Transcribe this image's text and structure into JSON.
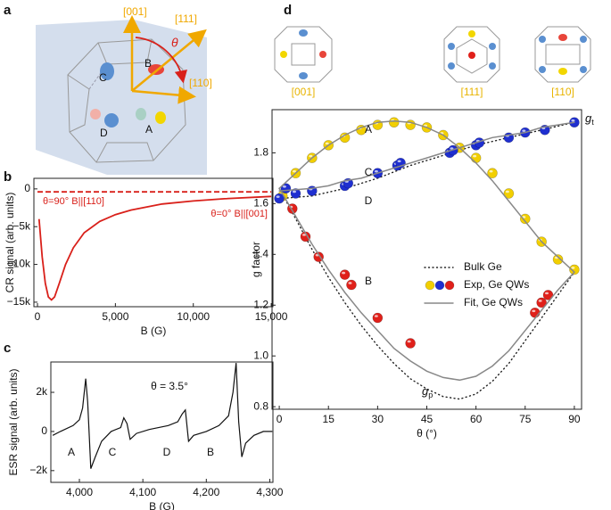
{
  "panel_labels": [
    "a",
    "b",
    "c",
    "d"
  ],
  "diagram_a": {
    "axes": [
      "[001]",
      "[111]",
      "[110]"
    ],
    "angle": "θ",
    "labels": [
      "B",
      "C",
      "D",
      "A"
    ]
  },
  "insets_d": [
    "[001]",
    "[111]",
    "[110]"
  ],
  "chart_data": [
    {
      "type": "line",
      "xlabel": "B (G)",
      "ylabel": "CR signal (arb. units)",
      "xlim": [
        -230,
        15110
      ],
      "ylim": [
        -15600,
        1400
      ],
      "xticks": [
        0,
        {
          "value": 5000,
          "label": "5,000"
        },
        {
          "value": 10000,
          "label": "10,000"
        },
        {
          "value": 15000,
          "label": "15,000"
        }
      ],
      "yticks": [
        0,
        {
          "value": -5000,
          "label": "−5k"
        },
        {
          "value": -10000,
          "label": "−10k"
        },
        {
          "value": -15000,
          "label": "−15k"
        }
      ],
      "annotations": [
        "θ=90° B||[110]",
        "θ=0° B||[001]"
      ],
      "series": [
        {
          "color": "#d9201a",
          "dash": true,
          "x": [
            0,
            15000
          ],
          "values": [
            -400,
            -400
          ]
        },
        {
          "color": "#d9201a",
          "dash": false,
          "x": [
            100,
            300,
            500,
            700,
            900,
            1100,
            1400,
            1800,
            2300,
            3000,
            4000,
            5000,
            6000,
            8000,
            10000,
            12000,
            15000
          ],
          "values": [
            -4000,
            -9000,
            -12500,
            -14300,
            -14700,
            -14300,
            -12500,
            -10000,
            -7800,
            -5800,
            -4300,
            -3400,
            -2800,
            -2000,
            -1600,
            -1300,
            -1000
          ]
        }
      ]
    },
    {
      "type": "line",
      "xlabel": "B (G)",
      "ylabel": "ESR signal (arb. units)",
      "xlim": [
        3955,
        4305
      ],
      "ylim": [
        -2600,
        3550
      ],
      "xticks": [
        {
          "value": 4000,
          "label": "4,000"
        },
        {
          "value": 4100,
          "label": "4,100"
        },
        {
          "value": 4200,
          "label": "4,200"
        },
        {
          "value": 4300,
          "label": "4,300"
        }
      ],
      "yticks": [
        {
          "value": -2000,
          "label": "−2k"
        },
        0,
        {
          "value": 2000,
          "label": "2k"
        }
      ],
      "annotations": [
        "θ = 3.5°",
        "A",
        "C",
        "D",
        "B"
      ],
      "series": [
        {
          "color": "#111",
          "dash": false,
          "x": [
            3958,
            3970,
            3990,
            4000,
            4005,
            4010,
            4013,
            4018,
            4025,
            4035,
            4050,
            4065,
            4070,
            4075,
            4080,
            4090,
            4110,
            4140,
            4155,
            4162,
            4167,
            4172,
            4180,
            4200,
            4220,
            4235,
            4242,
            4247,
            4251,
            4256,
            4262,
            4275,
            4290,
            4304
          ],
          "values": [
            -200,
            0,
            300,
            600,
            1200,
            2700,
            1500,
            -1900,
            -1300,
            -500,
            0,
            200,
            700,
            400,
            -400,
            -100,
            100,
            300,
            500,
            900,
            1100,
            -500,
            -200,
            0,
            300,
            800,
            2000,
            3500,
            500,
            -1300,
            -600,
            -200,
            0,
            0
          ]
        }
      ]
    },
    {
      "type": "line",
      "xlabel": "θ (°)",
      "ylabel": "g factor",
      "xlim": [
        -2.2,
        92.2
      ],
      "ylim": [
        0.79,
        1.97
      ],
      "xticks": [
        0,
        15,
        30,
        45,
        60,
        75,
        90
      ],
      "yticks": [
        0.8,
        {
          "value": 1,
          "label": "1.0"
        },
        1.2,
        1.4,
        1.6,
        1.8
      ],
      "annotations": [
        "A",
        "C",
        "D",
        "B"
      ],
      "subscript_labels": [
        {
          "text": "g",
          "sub": "t"
        },
        {
          "text": "g",
          "sub": "p"
        }
      ],
      "series": [
        {
          "name": "Bulk Ge",
          "style": "dotted",
          "color": "#222",
          "lines": [
            {
              "x": [
                0,
                5,
                10,
                15,
                20,
                25,
                30,
                35,
                40,
                45,
                50,
                55,
                60,
                65,
                70,
                75,
                80,
                85,
                90
              ],
              "values": [
                1.66,
                1.54,
                1.42,
                1.31,
                1.21,
                1.12,
                1.04,
                0.97,
                0.91,
                0.87,
                0.84,
                0.83,
                0.85,
                0.9,
                0.97,
                1.06,
                1.15,
                1.24,
                1.33
              ]
            },
            {
              "x": [
                0,
                10,
                20,
                30,
                40,
                50,
                60,
                70,
                80,
                90
              ],
              "values": [
                1.62,
                1.63,
                1.66,
                1.7,
                1.75,
                1.79,
                1.83,
                1.86,
                1.89,
                1.92
              ]
            }
          ]
        },
        {
          "name": "Exp, Ge QWs",
          "style": "markers",
          "groups": [
            {
              "color": "#f2cf00",
              "x": [
                1,
                5,
                10,
                15,
                20,
                25,
                30,
                35,
                40,
                45,
                50,
                55,
                60,
                65,
                70,
                75,
                80,
                85,
                90
              ],
              "values": [
                1.63,
                1.72,
                1.78,
                1.83,
                1.86,
                1.89,
                1.91,
                1.92,
                1.91,
                1.9,
                1.87,
                1.82,
                1.78,
                1.72,
                1.64,
                1.54,
                1.45,
                1.38,
                1.34
              ]
            },
            {
              "color": "#1f2fd0",
              "x": [
                0,
                2,
                5,
                10,
                20,
                21,
                30,
                36,
                37,
                52,
                53,
                60,
                61,
                70,
                75,
                81,
                90
              ],
              "values": [
                1.62,
                1.66,
                1.64,
                1.65,
                1.67,
                1.68,
                1.72,
                1.75,
                1.76,
                1.8,
                1.81,
                1.83,
                1.84,
                1.86,
                1.88,
                1.89,
                1.92
              ]
            },
            {
              "color": "#e0201a",
              "x": [
                4,
                8,
                12,
                20,
                22,
                30,
                40,
                78,
                80,
                82
              ],
              "values": [
                1.58,
                1.47,
                1.39,
                1.32,
                1.28,
                1.15,
                1.05,
                1.17,
                1.21,
                1.24
              ]
            }
          ]
        },
        {
          "name": "Fit, Ge QWs",
          "style": "solid",
          "color": "#888",
          "lines": [
            {
              "x": [
                0,
                5,
                10,
                15,
                20,
                25,
                30,
                35,
                40,
                45,
                50,
                55,
                60,
                65,
                70,
                75,
                80,
                85,
                90
              ],
              "values": [
                1.66,
                1.72,
                1.78,
                1.83,
                1.87,
                1.9,
                1.92,
                1.925,
                1.92,
                1.9,
                1.87,
                1.82,
                1.76,
                1.69,
                1.61,
                1.53,
                1.45,
                1.39,
                1.33
              ]
            },
            {
              "x": [
                0,
                5,
                10,
                15,
                20,
                25,
                30,
                35,
                40,
                45,
                50,
                55,
                60,
                65,
                70,
                75,
                80,
                85,
                90
              ],
              "values": [
                1.65,
                1.655,
                1.66,
                1.67,
                1.69,
                1.7,
                1.72,
                1.74,
                1.76,
                1.78,
                1.8,
                1.82,
                1.84,
                1.86,
                1.87,
                1.88,
                1.9,
                1.91,
                1.92
              ]
            },
            {
              "x": [
                0,
                5,
                10,
                15,
                20,
                25,
                30,
                35,
                40,
                45,
                50,
                55,
                60,
                65,
                70,
                75,
                80,
                85,
                90
              ],
              "values": [
                1.66,
                1.55,
                1.44,
                1.34,
                1.25,
                1.17,
                1.1,
                1.03,
                0.98,
                0.94,
                0.915,
                0.905,
                0.92,
                0.96,
                1.02,
                1.1,
                1.18,
                1.26,
                1.33
              ]
            }
          ]
        }
      ]
    }
  ]
}
